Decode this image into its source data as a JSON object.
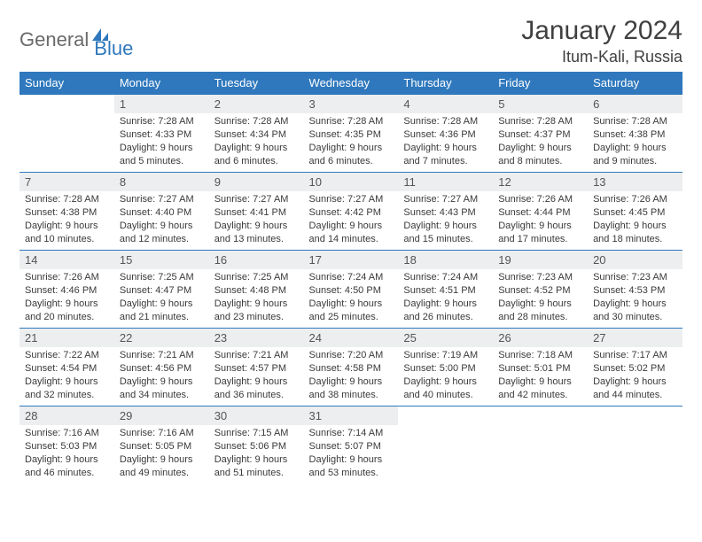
{
  "brand": {
    "word1": "General",
    "word2": "Blue"
  },
  "title": "January 2024",
  "location": "Itum-Kali, Russia",
  "colors": {
    "header_bg": "#2f78bd",
    "header_text": "#ffffff",
    "daynum_bg": "#eceeef",
    "rule": "#2f78bd",
    "text": "#3a3a3a",
    "title_text": "#404040"
  },
  "weekdays": [
    "Sunday",
    "Monday",
    "Tuesday",
    "Wednesday",
    "Thursday",
    "Friday",
    "Saturday"
  ],
  "weeks": [
    [
      {
        "day": "",
        "lines": []
      },
      {
        "day": "1",
        "lines": [
          "Sunrise: 7:28 AM",
          "Sunset: 4:33 PM",
          "Daylight: 9 hours",
          "and 5 minutes."
        ]
      },
      {
        "day": "2",
        "lines": [
          "Sunrise: 7:28 AM",
          "Sunset: 4:34 PM",
          "Daylight: 9 hours",
          "and 6 minutes."
        ]
      },
      {
        "day": "3",
        "lines": [
          "Sunrise: 7:28 AM",
          "Sunset: 4:35 PM",
          "Daylight: 9 hours",
          "and 6 minutes."
        ]
      },
      {
        "day": "4",
        "lines": [
          "Sunrise: 7:28 AM",
          "Sunset: 4:36 PM",
          "Daylight: 9 hours",
          "and 7 minutes."
        ]
      },
      {
        "day": "5",
        "lines": [
          "Sunrise: 7:28 AM",
          "Sunset: 4:37 PM",
          "Daylight: 9 hours",
          "and 8 minutes."
        ]
      },
      {
        "day": "6",
        "lines": [
          "Sunrise: 7:28 AM",
          "Sunset: 4:38 PM",
          "Daylight: 9 hours",
          "and 9 minutes."
        ]
      }
    ],
    [
      {
        "day": "7",
        "lines": [
          "Sunrise: 7:28 AM",
          "Sunset: 4:38 PM",
          "Daylight: 9 hours",
          "and 10 minutes."
        ]
      },
      {
        "day": "8",
        "lines": [
          "Sunrise: 7:27 AM",
          "Sunset: 4:40 PM",
          "Daylight: 9 hours",
          "and 12 minutes."
        ]
      },
      {
        "day": "9",
        "lines": [
          "Sunrise: 7:27 AM",
          "Sunset: 4:41 PM",
          "Daylight: 9 hours",
          "and 13 minutes."
        ]
      },
      {
        "day": "10",
        "lines": [
          "Sunrise: 7:27 AM",
          "Sunset: 4:42 PM",
          "Daylight: 9 hours",
          "and 14 minutes."
        ]
      },
      {
        "day": "11",
        "lines": [
          "Sunrise: 7:27 AM",
          "Sunset: 4:43 PM",
          "Daylight: 9 hours",
          "and 15 minutes."
        ]
      },
      {
        "day": "12",
        "lines": [
          "Sunrise: 7:26 AM",
          "Sunset: 4:44 PM",
          "Daylight: 9 hours",
          "and 17 minutes."
        ]
      },
      {
        "day": "13",
        "lines": [
          "Sunrise: 7:26 AM",
          "Sunset: 4:45 PM",
          "Daylight: 9 hours",
          "and 18 minutes."
        ]
      }
    ],
    [
      {
        "day": "14",
        "lines": [
          "Sunrise: 7:26 AM",
          "Sunset: 4:46 PM",
          "Daylight: 9 hours",
          "and 20 minutes."
        ]
      },
      {
        "day": "15",
        "lines": [
          "Sunrise: 7:25 AM",
          "Sunset: 4:47 PM",
          "Daylight: 9 hours",
          "and 21 minutes."
        ]
      },
      {
        "day": "16",
        "lines": [
          "Sunrise: 7:25 AM",
          "Sunset: 4:48 PM",
          "Daylight: 9 hours",
          "and 23 minutes."
        ]
      },
      {
        "day": "17",
        "lines": [
          "Sunrise: 7:24 AM",
          "Sunset: 4:50 PM",
          "Daylight: 9 hours",
          "and 25 minutes."
        ]
      },
      {
        "day": "18",
        "lines": [
          "Sunrise: 7:24 AM",
          "Sunset: 4:51 PM",
          "Daylight: 9 hours",
          "and 26 minutes."
        ]
      },
      {
        "day": "19",
        "lines": [
          "Sunrise: 7:23 AM",
          "Sunset: 4:52 PM",
          "Daylight: 9 hours",
          "and 28 minutes."
        ]
      },
      {
        "day": "20",
        "lines": [
          "Sunrise: 7:23 AM",
          "Sunset: 4:53 PM",
          "Daylight: 9 hours",
          "and 30 minutes."
        ]
      }
    ],
    [
      {
        "day": "21",
        "lines": [
          "Sunrise: 7:22 AM",
          "Sunset: 4:54 PM",
          "Daylight: 9 hours",
          "and 32 minutes."
        ]
      },
      {
        "day": "22",
        "lines": [
          "Sunrise: 7:21 AM",
          "Sunset: 4:56 PM",
          "Daylight: 9 hours",
          "and 34 minutes."
        ]
      },
      {
        "day": "23",
        "lines": [
          "Sunrise: 7:21 AM",
          "Sunset: 4:57 PM",
          "Daylight: 9 hours",
          "and 36 minutes."
        ]
      },
      {
        "day": "24",
        "lines": [
          "Sunrise: 7:20 AM",
          "Sunset: 4:58 PM",
          "Daylight: 9 hours",
          "and 38 minutes."
        ]
      },
      {
        "day": "25",
        "lines": [
          "Sunrise: 7:19 AM",
          "Sunset: 5:00 PM",
          "Daylight: 9 hours",
          "and 40 minutes."
        ]
      },
      {
        "day": "26",
        "lines": [
          "Sunrise: 7:18 AM",
          "Sunset: 5:01 PM",
          "Daylight: 9 hours",
          "and 42 minutes."
        ]
      },
      {
        "day": "27",
        "lines": [
          "Sunrise: 7:17 AM",
          "Sunset: 5:02 PM",
          "Daylight: 9 hours",
          "and 44 minutes."
        ]
      }
    ],
    [
      {
        "day": "28",
        "lines": [
          "Sunrise: 7:16 AM",
          "Sunset: 5:03 PM",
          "Daylight: 9 hours",
          "and 46 minutes."
        ]
      },
      {
        "day": "29",
        "lines": [
          "Sunrise: 7:16 AM",
          "Sunset: 5:05 PM",
          "Daylight: 9 hours",
          "and 49 minutes."
        ]
      },
      {
        "day": "30",
        "lines": [
          "Sunrise: 7:15 AM",
          "Sunset: 5:06 PM",
          "Daylight: 9 hours",
          "and 51 minutes."
        ]
      },
      {
        "day": "31",
        "lines": [
          "Sunrise: 7:14 AM",
          "Sunset: 5:07 PM",
          "Daylight: 9 hours",
          "and 53 minutes."
        ]
      },
      {
        "day": "",
        "lines": []
      },
      {
        "day": "",
        "lines": []
      },
      {
        "day": "",
        "lines": []
      }
    ]
  ]
}
